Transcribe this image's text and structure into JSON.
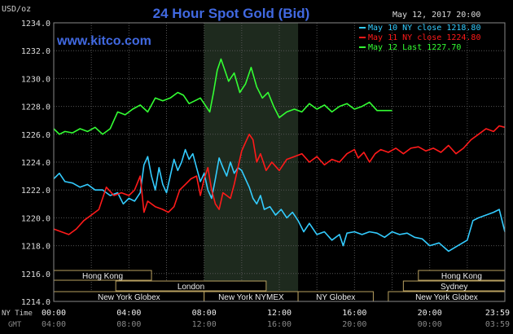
{
  "chart_data": {
    "type": "line",
    "title": "24 Hour Spot Gold (Bid)",
    "ylabel": "USD/oz",
    "website": "www.kitco.com",
    "timestamp": "May 12, 2017 20:00",
    "ylim": [
      1214.0,
      1234.0
    ],
    "y_ticks": [
      "1214.0",
      "1216.0",
      "1218.0",
      "1220.0",
      "1222.0",
      "1224.0",
      "1226.0",
      "1228.0",
      "1230.0",
      "1232.0",
      "1234.0"
    ],
    "x_axis": {
      "ny_label": "NY Time",
      "gmt_label": "GMT",
      "ny_ticks": [
        "00:00",
        "04:00",
        "08:00",
        "12:00",
        "16:00",
        "20:00",
        "23:59"
      ],
      "gmt_ticks": [
        "04:00",
        "08:00",
        "12:00",
        "16:00",
        "20:00",
        "00:00",
        "03:59"
      ]
    },
    "legend": [
      {
        "label": "May 10 NY close 1218.80",
        "color": "#33ccff"
      },
      {
        "label": "May 11 NY close 1224.80",
        "color": "#ff1a1a"
      },
      {
        "label": "May 12 Last 1227.70",
        "color": "#33ff33"
      }
    ],
    "series": [
      {
        "name": "May 10",
        "color": "#33ccff",
        "points": [
          [
            0,
            1222.8
          ],
          [
            0.3,
            1223.2
          ],
          [
            0.6,
            1222.6
          ],
          [
            1.0,
            1222.5
          ],
          [
            1.4,
            1222.2
          ],
          [
            1.8,
            1222.4
          ],
          [
            2.2,
            1222.0
          ],
          [
            2.6,
            1222.0
          ],
          [
            3.0,
            1221.6
          ],
          [
            3.4,
            1221.8
          ],
          [
            3.7,
            1221.0
          ],
          [
            4.0,
            1221.4
          ],
          [
            4.3,
            1221.2
          ],
          [
            4.6,
            1221.8
          ],
          [
            4.8,
            1223.8
          ],
          [
            5.0,
            1224.4
          ],
          [
            5.2,
            1223.0
          ],
          [
            5.4,
            1222.0
          ],
          [
            5.6,
            1223.6
          ],
          [
            5.8,
            1222.4
          ],
          [
            6.0,
            1221.8
          ],
          [
            6.2,
            1223.0
          ],
          [
            6.4,
            1224.2
          ],
          [
            6.6,
            1223.4
          ],
          [
            6.8,
            1224.0
          ],
          [
            7.0,
            1224.9
          ],
          [
            7.2,
            1224.2
          ],
          [
            7.4,
            1224.6
          ],
          [
            7.6,
            1223.6
          ],
          [
            7.8,
            1222.6
          ],
          [
            8.0,
            1223.2
          ],
          [
            8.2,
            1222.0
          ],
          [
            8.4,
            1221.4
          ],
          [
            8.6,
            1222.8
          ],
          [
            8.8,
            1224.3
          ],
          [
            9.0,
            1223.6
          ],
          [
            9.2,
            1223.0
          ],
          [
            9.4,
            1224.0
          ],
          [
            9.6,
            1223.2
          ],
          [
            9.8,
            1223.6
          ],
          [
            10.0,
            1223.4
          ],
          [
            10.2,
            1222.8
          ],
          [
            10.4,
            1222.2
          ],
          [
            10.6,
            1221.4
          ],
          [
            10.8,
            1221.0
          ],
          [
            11.0,
            1221.6
          ],
          [
            11.2,
            1220.6
          ],
          [
            11.5,
            1220.8
          ],
          [
            11.8,
            1220.2
          ],
          [
            12.1,
            1220.6
          ],
          [
            12.4,
            1220.0
          ],
          [
            12.7,
            1220.4
          ],
          [
            13.0,
            1219.8
          ],
          [
            13.3,
            1219.0
          ],
          [
            13.6,
            1219.6
          ],
          [
            14.0,
            1218.8
          ],
          [
            14.4,
            1219.0
          ],
          [
            14.8,
            1218.4
          ],
          [
            15.2,
            1218.8
          ],
          [
            15.4,
            1218.0
          ],
          [
            15.6,
            1218.9
          ],
          [
            16.0,
            1219.0
          ],
          [
            16.4,
            1218.8
          ],
          [
            16.8,
            1219.0
          ],
          [
            17.2,
            1218.9
          ],
          [
            17.6,
            1218.6
          ],
          [
            18.0,
            1219.0
          ],
          [
            18.4,
            1218.8
          ],
          [
            18.8,
            1218.9
          ],
          [
            19.2,
            1218.6
          ],
          [
            19.6,
            1218.5
          ],
          [
            20.0,
            1218.0
          ],
          [
            20.5,
            1218.2
          ],
          [
            21.0,
            1217.6
          ],
          [
            21.5,
            1218.0
          ],
          [
            22.0,
            1218.4
          ],
          [
            22.3,
            1219.8
          ],
          [
            22.6,
            1220.0
          ],
          [
            23.0,
            1220.2
          ],
          [
            23.4,
            1220.4
          ],
          [
            23.7,
            1220.6
          ],
          [
            24.0,
            1219.0
          ]
        ]
      },
      {
        "name": "May 11",
        "color": "#ff1a1a",
        "points": [
          [
            0,
            1219.2
          ],
          [
            0.4,
            1219.0
          ],
          [
            0.8,
            1218.8
          ],
          [
            1.2,
            1219.2
          ],
          [
            1.6,
            1219.8
          ],
          [
            2.0,
            1220.2
          ],
          [
            2.4,
            1220.6
          ],
          [
            2.8,
            1222.2
          ],
          [
            3.2,
            1221.6
          ],
          [
            3.6,
            1221.8
          ],
          [
            4.0,
            1221.6
          ],
          [
            4.3,
            1222.0
          ],
          [
            4.6,
            1223.0
          ],
          [
            4.8,
            1220.4
          ],
          [
            5.0,
            1221.2
          ],
          [
            5.4,
            1220.8
          ],
          [
            5.8,
            1220.6
          ],
          [
            6.1,
            1220.4
          ],
          [
            6.4,
            1220.8
          ],
          [
            6.7,
            1222.0
          ],
          [
            7.0,
            1222.4
          ],
          [
            7.3,
            1222.8
          ],
          [
            7.6,
            1223.0
          ],
          [
            7.8,
            1221.6
          ],
          [
            8.0,
            1222.8
          ],
          [
            8.2,
            1223.6
          ],
          [
            8.4,
            1222.0
          ],
          [
            8.6,
            1221.0
          ],
          [
            8.8,
            1220.6
          ],
          [
            9.0,
            1221.8
          ],
          [
            9.2,
            1221.6
          ],
          [
            9.4,
            1221.4
          ],
          [
            9.6,
            1222.4
          ],
          [
            9.8,
            1223.6
          ],
          [
            10.0,
            1224.8
          ],
          [
            10.2,
            1225.4
          ],
          [
            10.4,
            1226.0
          ],
          [
            10.6,
            1225.6
          ],
          [
            10.8,
            1224.0
          ],
          [
            11.0,
            1224.6
          ],
          [
            11.3,
            1223.4
          ],
          [
            11.6,
            1224.0
          ],
          [
            12.0,
            1223.4
          ],
          [
            12.4,
            1224.2
          ],
          [
            12.8,
            1224.4
          ],
          [
            13.2,
            1224.6
          ],
          [
            13.6,
            1224.0
          ],
          [
            14.0,
            1224.4
          ],
          [
            14.4,
            1223.8
          ],
          [
            14.8,
            1224.2
          ],
          [
            15.2,
            1224.0
          ],
          [
            15.6,
            1224.6
          ],
          [
            16.0,
            1224.9
          ],
          [
            16.2,
            1224.3
          ],
          [
            16.5,
            1224.7
          ],
          [
            16.8,
            1224.0
          ],
          [
            17.1,
            1224.6
          ],
          [
            17.4,
            1224.9
          ],
          [
            17.8,
            1224.7
          ],
          [
            18.2,
            1225.0
          ],
          [
            18.6,
            1224.6
          ],
          [
            19.0,
            1225.0
          ],
          [
            19.4,
            1225.1
          ],
          [
            19.8,
            1224.8
          ],
          [
            20.2,
            1225.0
          ],
          [
            20.6,
            1224.7
          ],
          [
            21.0,
            1225.2
          ],
          [
            21.4,
            1224.6
          ],
          [
            21.8,
            1225.0
          ],
          [
            22.2,
            1225.6
          ],
          [
            22.6,
            1226.0
          ],
          [
            23.0,
            1226.4
          ],
          [
            23.4,
            1226.2
          ],
          [
            23.7,
            1226.6
          ],
          [
            24.0,
            1226.5
          ]
        ]
      },
      {
        "name": "May 12",
        "color": "#33ff33",
        "points": [
          [
            0,
            1226.4
          ],
          [
            0.3,
            1226.0
          ],
          [
            0.6,
            1226.2
          ],
          [
            1.0,
            1226.1
          ],
          [
            1.4,
            1226.4
          ],
          [
            1.8,
            1226.2
          ],
          [
            2.2,
            1226.5
          ],
          [
            2.6,
            1226.0
          ],
          [
            3.0,
            1226.4
          ],
          [
            3.4,
            1227.6
          ],
          [
            3.8,
            1227.4
          ],
          [
            4.2,
            1227.8
          ],
          [
            4.6,
            1228.1
          ],
          [
            5.0,
            1227.6
          ],
          [
            5.4,
            1228.6
          ],
          [
            5.8,
            1228.4
          ],
          [
            6.2,
            1228.6
          ],
          [
            6.6,
            1229.0
          ],
          [
            6.9,
            1228.8
          ],
          [
            7.2,
            1228.2
          ],
          [
            7.5,
            1228.4
          ],
          [
            7.8,
            1228.6
          ],
          [
            8.1,
            1228.0
          ],
          [
            8.3,
            1227.6
          ],
          [
            8.5,
            1229.0
          ],
          [
            8.7,
            1230.6
          ],
          [
            8.9,
            1231.4
          ],
          [
            9.1,
            1230.6
          ],
          [
            9.3,
            1229.8
          ],
          [
            9.6,
            1230.4
          ],
          [
            9.9,
            1229.0
          ],
          [
            10.2,
            1229.6
          ],
          [
            10.5,
            1230.8
          ],
          [
            10.8,
            1229.4
          ],
          [
            11.1,
            1228.6
          ],
          [
            11.4,
            1229.0
          ],
          [
            11.7,
            1228.0
          ],
          [
            12.0,
            1227.2
          ],
          [
            12.4,
            1227.6
          ],
          [
            12.8,
            1227.8
          ],
          [
            13.2,
            1227.6
          ],
          [
            13.6,
            1228.2
          ],
          [
            14.0,
            1227.8
          ],
          [
            14.4,
            1228.1
          ],
          [
            14.8,
            1227.6
          ],
          [
            15.2,
            1228.0
          ],
          [
            15.6,
            1228.2
          ],
          [
            16.0,
            1227.8
          ],
          [
            16.4,
            1228.0
          ],
          [
            16.8,
            1228.3
          ],
          [
            17.2,
            1227.7
          ],
          [
            17.6,
            1227.7
          ],
          [
            18.0,
            1227.7
          ]
        ]
      }
    ],
    "shaded_region_hours": [
      8.0,
      13.0
    ],
    "sessions_row1": [
      {
        "label": "Hong Kong",
        "start": 0,
        "end": 5.2
      },
      {
        "label": "Hong Kong",
        "start": 19.4,
        "end": 24.0
      }
    ],
    "sessions_row2": [
      {
        "label": "London",
        "start": 3.3,
        "end": 11.3
      },
      {
        "label": "Sydney",
        "start": 18.6,
        "end": 24.0
      }
    ],
    "sessions_row3": [
      {
        "label": "New York Globex",
        "start": 0,
        "end": 8.0
      },
      {
        "label": "New York NYMEX",
        "start": 8.0,
        "end": 13.0
      },
      {
        "label": "NY Globex",
        "start": 13.0,
        "end": 17.0
      },
      {
        "label": "New York Globex",
        "start": 17.8,
        "end": 24.0
      }
    ]
  }
}
